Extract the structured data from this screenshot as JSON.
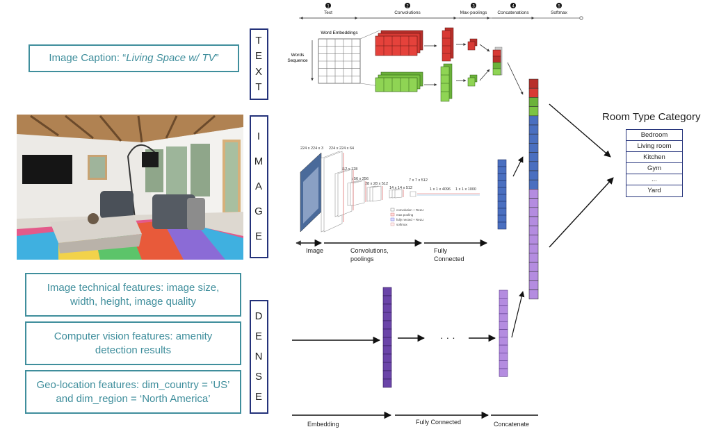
{
  "text_section": {
    "caption_prefix": "Image Caption: “",
    "caption_italic": "Living Space w/ TV",
    "caption_suffix": "”",
    "vertical_label": [
      "T",
      "E",
      "X",
      "T"
    ]
  },
  "image_section": {
    "vertical_label": [
      "I",
      "M",
      "A",
      "G",
      "E"
    ]
  },
  "dense_section": {
    "vertical_label": [
      "D",
      "E",
      "N",
      "S",
      "E"
    ],
    "features": [
      "Image technical features: image size, width, height, image quality",
      "Computer vision features: amenity detection results",
      "Geo-location features: dim_country = ‘US’ and dim_region = ‘North America’"
    ],
    "ellipsis": "· · ·",
    "stage_labels": [
      "Embedding",
      "Fully Connected",
      "Concatenate"
    ]
  },
  "text_cnn": {
    "steps": [
      {
        "num": "1",
        "label": "Text"
      },
      {
        "num": "2",
        "label": "Convolutions"
      },
      {
        "num": "3",
        "label": "Max-poolings"
      },
      {
        "num": "4",
        "label": "Concatenations"
      },
      {
        "num": "5",
        "label": "Softmax"
      }
    ],
    "word_embeddings": "Word Embeddings",
    "words_sequence": [
      "Words",
      "Sequence"
    ]
  },
  "vgg": {
    "sizes": [
      "224 x 224 x 3",
      "224 x 224 x 64",
      "112 x 112 x 128",
      "56 x 56 x 256",
      "28 x 28 x 512",
      "14 x 14 x 512",
      "7 x 7 x 512",
      "1 x 1 x 4096",
      "1 x 1 x 1000"
    ],
    "legend": [
      "convolution + ReLU",
      "max pooling",
      "fully nected + ReLU",
      "softmax"
    ],
    "stage_labels": {
      "image": "Image",
      "conv": [
        "Convolutions,",
        "poolings"
      ],
      "fc": [
        "Fully",
        "Connected"
      ]
    }
  },
  "output": {
    "title": "Room Type Category",
    "categories": [
      "Bedroom",
      "Living room",
      "Kitchen",
      "Gym",
      "...",
      "Yard"
    ]
  },
  "colors": {
    "teal": "#3f8e9c",
    "navy": "#24327a",
    "red": "#d83a34",
    "green": "#7cc444",
    "blue": "#4a6fc0",
    "purple": "#b48ce0",
    "dark_purple": "#6a44a8"
  }
}
